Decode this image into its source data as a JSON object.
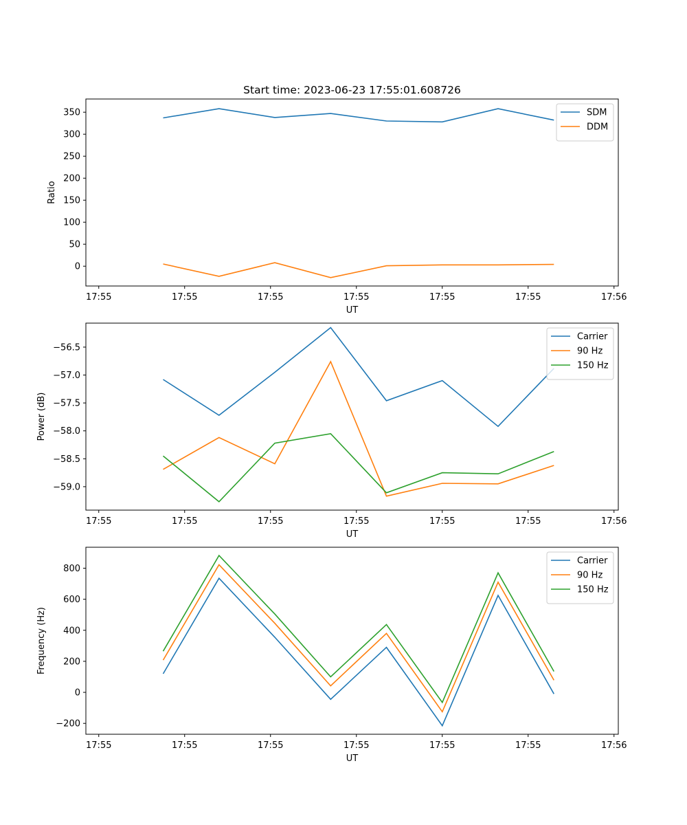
{
  "chart_data": [
    {
      "type": "line",
      "title": "Start time: 2023-06-23 17:55:01.608726",
      "xlabel": "UT",
      "ylabel": "Ratio",
      "legend": "top-right",
      "grid": false,
      "x": [
        0.9,
        1.55,
        2.2,
        2.85,
        3.5,
        4.15,
        4.8,
        5.45
      ],
      "xlim": [
        0,
        6.2
      ],
      "xticks": [
        0.15,
        1.15,
        2.15,
        3.15,
        4.15,
        5.15,
        6.15
      ],
      "xtick_labels": [
        "17:55",
        "17:55",
        "17:55",
        "17:55",
        "17:55",
        "17:55",
        "17:56"
      ],
      "ylim": [
        -45,
        380
      ],
      "yticks": [
        0,
        50,
        100,
        150,
        200,
        250,
        300,
        350
      ],
      "ytick_labels": [
        "0",
        "50",
        "100",
        "150",
        "200",
        "250",
        "300",
        "350"
      ],
      "series": [
        {
          "name": "SDM",
          "color": "#1f77b4",
          "values": [
            337,
            358,
            338,
            347,
            330,
            328,
            358,
            332
          ]
        },
        {
          "name": "DDM",
          "color": "#ff7f0e",
          "values": [
            5,
            -23,
            8,
            -26,
            1,
            3,
            3,
            4
          ]
        }
      ]
    },
    {
      "type": "line",
      "xlabel": "UT",
      "ylabel": "Power (dB)",
      "legend": "top-right",
      "grid": false,
      "x": [
        0.9,
        1.55,
        2.2,
        2.85,
        3.5,
        4.15,
        4.8,
        5.45
      ],
      "xlim": [
        0,
        6.2
      ],
      "xticks": [
        0.15,
        1.15,
        2.15,
        3.15,
        4.15,
        5.15,
        6.15
      ],
      "xtick_labels": [
        "17:55",
        "17:55",
        "17:55",
        "17:55",
        "17:55",
        "17:55",
        "17:56"
      ],
      "ylim": [
        -59.42,
        -56.07
      ],
      "yticks": [
        -59.0,
        -58.5,
        -58.0,
        -57.5,
        -57.0,
        -56.5
      ],
      "ytick_labels": [
        "−59.0",
        "−58.5",
        "−58.0",
        "−57.5",
        "−57.0",
        "−56.5"
      ],
      "series": [
        {
          "name": "Carrier",
          "color": "#1f77b4",
          "values": [
            -57.08,
            -57.72,
            -56.95,
            -56.15,
            -57.46,
            -57.1,
            -57.92,
            -56.88
          ]
        },
        {
          "name": "90 Hz",
          "color": "#ff7f0e",
          "values": [
            -58.69,
            -58.12,
            -58.59,
            -56.76,
            -59.17,
            -58.94,
            -58.95,
            -58.62
          ]
        },
        {
          "name": "150 Hz",
          "color": "#2ca02c",
          "values": [
            -58.45,
            -59.27,
            -58.22,
            -58.05,
            -59.11,
            -58.75,
            -58.77,
            -58.37
          ]
        }
      ]
    },
    {
      "type": "line",
      "xlabel": "UT",
      "ylabel": "Frequency (Hz)",
      "legend": "top-right",
      "grid": false,
      "x": [
        0.9,
        1.55,
        2.2,
        2.85,
        3.5,
        4.15,
        4.8,
        5.45
      ],
      "xlim": [
        0,
        6.2
      ],
      "xticks": [
        0.15,
        1.15,
        2.15,
        3.15,
        4.15,
        5.15,
        6.15
      ],
      "xtick_labels": [
        "17:55",
        "17:55",
        "17:55",
        "17:55",
        "17:55",
        "17:55",
        "17:56"
      ],
      "ylim": [
        -270,
        935
      ],
      "yticks": [
        -200,
        0,
        200,
        400,
        600,
        800
      ],
      "ytick_labels": [
        "−200",
        "0",
        "200",
        "400",
        "600",
        "800"
      ],
      "series": [
        {
          "name": "Carrier",
          "color": "#1f77b4",
          "values": [
            120,
            735,
            355,
            -45,
            290,
            -215,
            625,
            -10
          ]
        },
        {
          "name": "90 Hz",
          "color": "#ff7f0e",
          "values": [
            208,
            822,
            445,
            42,
            380,
            -125,
            710,
            78
          ]
        },
        {
          "name": "150 Hz",
          "color": "#2ca02c",
          "values": [
            265,
            882,
            505,
            100,
            437,
            -65,
            770,
            135
          ]
        }
      ]
    }
  ]
}
